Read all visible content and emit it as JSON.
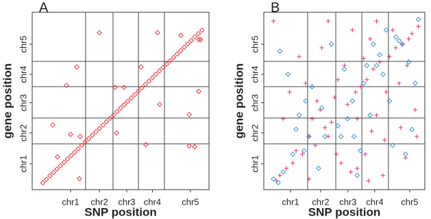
{
  "chart_data": [
    {
      "type": "scatter",
      "title": "A",
      "xlabel": "SNP position",
      "ylabel": "gene position",
      "xlim": [
        0,
        100
      ],
      "ylim": [
        0,
        100
      ],
      "xticks": [
        {
          "value": 21.7,
          "label": "chr1"
        },
        {
          "value": 38,
          "label": "chr2"
        },
        {
          "value": 53.5,
          "label": "chr3"
        },
        {
          "value": 68,
          "label": "chr4"
        },
        {
          "value": 89.5,
          "label": "chr5"
        }
      ],
      "yticks": [
        {
          "value": 14.6,
          "label": "chr1"
        },
        {
          "value": 32,
          "label": "chr2"
        },
        {
          "value": 49,
          "label": "chr3"
        },
        {
          "value": 65,
          "label": "chr4"
        },
        {
          "value": 82,
          "label": "chr5"
        }
      ],
      "xlines": [
        30.2,
        45.7,
        60.1,
        74.8
      ],
      "ylines": [
        25.8,
        40.4,
        58.1,
        72.3
      ],
      "series": [
        {
          "color": "#e8333c",
          "marker": "diamond",
          "x": [
            6,
            8,
            10,
            12,
            14,
            16,
            18,
            20,
            22,
            24,
            26,
            28,
            30,
            32,
            34,
            36,
            38,
            40,
            42,
            44,
            46,
            48,
            50,
            52,
            54,
            56,
            58,
            60,
            62,
            64,
            66,
            68,
            70,
            72,
            74,
            76,
            78,
            80,
            82,
            84,
            86,
            88,
            90,
            92,
            94,
            96,
            11.6,
            21.7,
            27.1,
            19.4,
            25.2,
            14.3,
            26.7,
            38,
            46.9,
            52,
            47.7,
            61.6,
            70.9,
            72.1,
            64.3,
            88.8,
            94.2,
            88.8,
            91.9,
            84.1,
            94.2,
            95.3
          ],
          "values": [
            3.9,
            5.8,
            7.8,
            9.7,
            11.6,
            13.5,
            15.4,
            17.3,
            19.2,
            21.1,
            23,
            25,
            26.9,
            28.8,
            30.7,
            32.6,
            34.5,
            36.4,
            38.3,
            40.2,
            42.1,
            44,
            46,
            47.9,
            49.8,
            51.7,
            53.6,
            55.5,
            57.4,
            59.3,
            61.2,
            63.1,
            65.1,
            67,
            68.9,
            70.8,
            72.7,
            74.6,
            76.5,
            78.4,
            80.3,
            82.2,
            84.1,
            86.1,
            88,
            89.9,
            36.5,
            31.2,
            30,
            58.8,
            69.2,
            18.5,
            6.2,
            88.5,
            57.7,
            57.7,
            31.9,
            69.2,
            88.5,
            48.1,
            25.4,
            42.3,
            55.4,
            24.6,
            24.2,
            86.9,
            84.6,
            84.6
          ]
        }
      ]
    },
    {
      "type": "scatter",
      "title": "B",
      "xlabel": "SNP position",
      "ylabel": "gene position",
      "xlim": [
        0,
        100
      ],
      "ylim": [
        0,
        100
      ],
      "xticks": [
        {
          "value": 16.6,
          "label": "chr1"
        },
        {
          "value": 35.3,
          "label": "chr2"
        },
        {
          "value": 52.3,
          "label": "chr3"
        },
        {
          "value": 68.9,
          "label": "chr4"
        },
        {
          "value": 90.6,
          "label": "chr5"
        }
      ],
      "yticks": [
        {
          "value": 14.6,
          "label": "chr1"
        },
        {
          "value": 32,
          "label": "chr2"
        },
        {
          "value": 49,
          "label": "chr3"
        },
        {
          "value": 65,
          "label": "chr4"
        },
        {
          "value": 82,
          "label": "chr5"
        }
      ],
      "xlines": [
        27.2,
        44.7,
        60.9,
        77.4
      ],
      "ylines": [
        25.8,
        40.4,
        58.1,
        72.3
      ],
      "series": [
        {
          "color": "#e0306a",
          "marker": "plus",
          "x": [
            8,
            10,
            14,
            18,
            20,
            24,
            26,
            28,
            30,
            32,
            33,
            35,
            36,
            38,
            40,
            42,
            44,
            46,
            48,
            50,
            52,
            54,
            55,
            57,
            58,
            60,
            62,
            63,
            64,
            66,
            67,
            68,
            70,
            72,
            74,
            75,
            76,
            78,
            80,
            82,
            84,
            85,
            86,
            88,
            89,
            90,
            92,
            94,
            95,
            96,
            12,
            16,
            22,
            6,
            40,
            58,
            70,
            28,
            45,
            65
          ],
          "values": [
            5,
            8,
            12,
            15,
            22,
            20,
            60,
            6,
            40,
            25,
            50,
            45,
            80,
            35,
            30,
            38,
            52,
            62,
            15,
            70,
            48,
            10,
            90,
            55,
            40,
            58,
            74,
            20,
            62,
            85,
            33,
            68,
            42,
            72,
            8,
            28,
            55,
            75,
            90,
            80,
            60,
            35,
            82,
            18,
            70,
            85,
            88,
            45,
            30,
            92,
            40,
            55,
            75,
            95,
            95,
            12,
            95,
            30,
            20,
            5
          ]
        },
        {
          "color": "#3a8fd0",
          "marker": "diamond",
          "x": [
            6,
            9,
            12,
            15,
            18,
            20,
            22,
            25,
            28,
            30,
            34,
            36,
            38,
            42,
            46,
            48,
            50,
            52,
            55,
            58,
            60,
            62,
            64,
            66,
            68,
            70,
            72,
            74,
            78,
            80,
            82,
            84,
            86,
            88,
            90,
            92,
            94,
            96,
            10,
            26,
            56,
            76
          ],
          "values": [
            6,
            4,
            10,
            65,
            20,
            34,
            42,
            22,
            30,
            58,
            12,
            46,
            30,
            82,
            36,
            30,
            68,
            40,
            50,
            8,
            22,
            60,
            70,
            42,
            82,
            70,
            76,
            65,
            50,
            25,
            86,
            84,
            82,
            20,
            72,
            34,
            60,
            96,
            78,
            50,
            30,
            90
          ]
        }
      ]
    }
  ]
}
